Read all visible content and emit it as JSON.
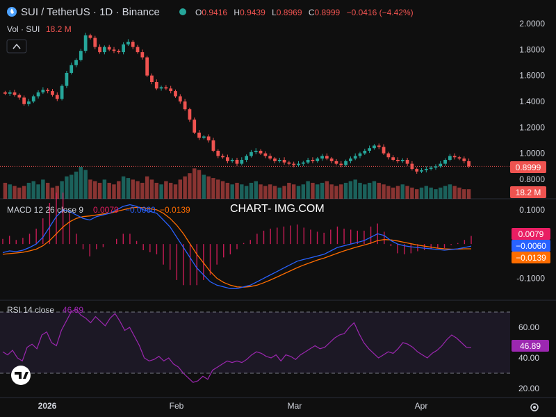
{
  "header": {
    "title": "SUI / TetherUS · 1D · Binance",
    "open_label": "O",
    "open": "0.9416",
    "high_label": "H",
    "high": "0.9439",
    "low_label": "L",
    "low": "0.8969",
    "close_label": "C",
    "close": "0.8999",
    "change": "−0.0416 (−4.42%)"
  },
  "volume_legend": {
    "label": "Vol · SUI",
    "value": "18.2 M"
  },
  "macd_legend": {
    "label": "MACD 12 26 close 9",
    "hist": "0.0079",
    "macd": "−0.0060",
    "signal": "−0.0139"
  },
  "rsi_legend": {
    "label": "RSI 14 close",
    "value": "46.89"
  },
  "watermark": "CHART- IMG.COM",
  "price_badges": {
    "last": "0.8999",
    "volume": "18.2 M"
  },
  "macd_badges": {
    "hist": "0.0079",
    "macd": "−0.0060",
    "signal": "−0.0139"
  },
  "rsi_badge": "46.89",
  "colors": {
    "up": "#26a69a",
    "down": "#ef5350",
    "macd": "#2962ff",
    "signal": "#ff6d00",
    "hist": "#e91e63",
    "rsi": "#9c27b0",
    "accent_macd_badge": "#e91e63"
  },
  "chart_data": [
    {
      "type": "candlestick",
      "title": "SUI / TetherUS · 1D · Binance",
      "x_ticks": [
        "2026",
        "Feb",
        "Mar",
        "Apr"
      ],
      "ylim": [
        0.8,
        2.0
      ],
      "y_ticks": [
        "2.0000",
        "1.8000",
        "1.6000",
        "1.4000",
        "1.2000",
        "1.0000",
        "0.8000"
      ],
      "last_price": 0.8999,
      "closes": [
        1.46,
        1.47,
        1.45,
        1.43,
        1.38,
        1.4,
        1.44,
        1.47,
        1.49,
        1.48,
        1.45,
        1.42,
        1.52,
        1.62,
        1.68,
        1.72,
        1.79,
        1.91,
        1.89,
        1.82,
        1.78,
        1.82,
        1.8,
        1.79,
        1.78,
        1.84,
        1.86,
        1.82,
        1.78,
        1.74,
        1.6,
        1.55,
        1.5,
        1.51,
        1.5,
        1.48,
        1.44,
        1.4,
        1.34,
        1.26,
        1.16,
        1.12,
        1.13,
        1.1,
        1.02,
        0.98,
        0.97,
        0.94,
        0.95,
        0.92,
        0.95,
        0.98,
        1.01,
        1.02,
        1.0,
        0.98,
        0.96,
        0.94,
        0.95,
        0.93,
        0.92,
        0.91,
        0.92,
        0.93,
        0.95,
        0.94,
        0.96,
        0.98,
        0.96,
        0.94,
        0.92,
        0.91,
        0.94,
        0.96,
        0.98,
        1.0,
        1.02,
        1.04,
        1.06,
        1.05,
        1.0,
        0.97,
        0.95,
        0.94,
        0.95,
        0.92,
        0.88,
        0.86,
        0.87,
        0.88,
        0.89,
        0.9,
        0.92,
        0.95,
        0.98,
        0.97,
        0.96,
        0.94,
        0.9
      ]
    },
    {
      "type": "bar",
      "title": "Vol · SUI",
      "values_relative": [
        0.5,
        0.45,
        0.4,
        0.35,
        0.4,
        0.5,
        0.55,
        0.45,
        0.6,
        0.5,
        0.35,
        0.4,
        0.55,
        0.7,
        0.75,
        0.85,
        1.0,
        0.9,
        0.6,
        0.55,
        0.5,
        0.6,
        0.5,
        0.45,
        0.55,
        0.7,
        0.65,
        0.6,
        0.55,
        0.5,
        0.7,
        0.6,
        0.5,
        0.45,
        0.55,
        0.5,
        0.45,
        0.6,
        0.7,
        0.8,
        0.95,
        0.9,
        0.75,
        0.7,
        0.65,
        0.6,
        0.55,
        0.5,
        0.45,
        0.5,
        0.45,
        0.4,
        0.5,
        0.55,
        0.45,
        0.4,
        0.45,
        0.4,
        0.35,
        0.4,
        0.5,
        0.45,
        0.4,
        0.45,
        0.55,
        0.5,
        0.45,
        0.5,
        0.55,
        0.45,
        0.4,
        0.45,
        0.5,
        0.55,
        0.6,
        0.5,
        0.45,
        0.5,
        0.55,
        0.5,
        0.45,
        0.4,
        0.35,
        0.4,
        0.45,
        0.4,
        0.35,
        0.3,
        0.35,
        0.4,
        0.35,
        0.3,
        0.35,
        0.4,
        0.45,
        0.4,
        0.35,
        0.3,
        0.3
      ],
      "last_value": "18.2 M"
    },
    {
      "type": "line",
      "title": "MACD 12 26 close 9",
      "ylim": [
        -0.16,
        0.12
      ],
      "y_ticks": [
        "0.1000",
        "-0.1000"
      ],
      "series": [
        {
          "name": "MACD",
          "values": [
            -0.025,
            -0.02,
            -0.022,
            -0.018,
            -0.01,
            0.0,
            0.02,
            0.05,
            0.08,
            0.1,
            0.095,
            0.085,
            0.075,
            0.07,
            0.08,
            0.085,
            0.09,
            0.1,
            0.11,
            0.115,
            0.11,
            0.1,
            0.095,
            0.09,
            0.07,
            0.05,
            0.02,
            -0.01,
            -0.04,
            -0.07,
            -0.09,
            -0.11,
            -0.12,
            -0.125,
            -0.13,
            -0.13,
            -0.125,
            -0.12,
            -0.11,
            -0.1,
            -0.09,
            -0.08,
            -0.07,
            -0.06,
            -0.05,
            -0.045,
            -0.04,
            -0.035,
            -0.03,
            -0.02,
            -0.01,
            -0.005,
            0.0,
            0.005,
            0.01,
            0.02,
            0.03,
            0.025,
            0.01,
            0.0,
            -0.005,
            -0.008,
            -0.01,
            -0.012,
            -0.014,
            -0.016,
            -0.018,
            -0.016,
            -0.014,
            -0.01,
            -0.006
          ]
        },
        {
          "name": "Signal",
          "values": [
            -0.03,
            -0.028,
            -0.026,
            -0.024,
            -0.02,
            -0.015,
            -0.005,
            0.01,
            0.03,
            0.05,
            0.065,
            0.075,
            0.08,
            0.082,
            0.085,
            0.088,
            0.09,
            0.095,
            0.1,
            0.105,
            0.107,
            0.106,
            0.103,
            0.1,
            0.09,
            0.075,
            0.055,
            0.03,
            0.0,
            -0.03,
            -0.055,
            -0.08,
            -0.1,
            -0.112,
            -0.12,
            -0.125,
            -0.126,
            -0.124,
            -0.12,
            -0.113,
            -0.105,
            -0.096,
            -0.087,
            -0.078,
            -0.069,
            -0.061,
            -0.054,
            -0.047,
            -0.041,
            -0.034,
            -0.027,
            -0.02,
            -0.014,
            -0.008,
            -0.003,
            0.003,
            0.01,
            0.013,
            0.012,
            0.009,
            0.005,
            0.001,
            -0.003,
            -0.006,
            -0.009,
            -0.012,
            -0.014,
            -0.015,
            -0.015,
            -0.014,
            -0.0139
          ]
        }
      ]
    },
    {
      "type": "line",
      "title": "RSI 14 close",
      "ylim": [
        15,
        75
      ],
      "y_ticks": [
        "60.00",
        "40.00",
        "20.00"
      ],
      "bands": [
        30,
        70
      ],
      "series": [
        {
          "name": "RSI",
          "values": [
            44,
            42,
            45,
            40,
            38,
            47,
            49,
            46,
            55,
            57,
            50,
            48,
            58,
            64,
            70,
            72,
            68,
            66,
            63,
            67,
            64,
            61,
            66,
            69,
            64,
            58,
            60,
            54,
            48,
            40,
            38,
            39,
            41,
            38,
            40,
            36,
            34,
            30,
            27,
            24,
            25,
            28,
            26,
            32,
            34,
            36,
            38,
            37,
            38,
            37,
            39,
            42,
            44,
            43,
            41,
            40,
            42,
            38,
            42,
            41,
            39,
            42,
            44,
            46,
            48,
            46,
            47,
            50,
            53,
            55,
            56,
            60,
            63,
            56,
            50,
            46,
            43,
            40,
            42,
            44,
            43,
            46,
            50,
            49,
            47,
            44,
            42,
            40,
            43,
            45,
            48,
            52,
            55,
            53,
            50,
            47,
            46.89
          ]
        }
      ]
    }
  ]
}
